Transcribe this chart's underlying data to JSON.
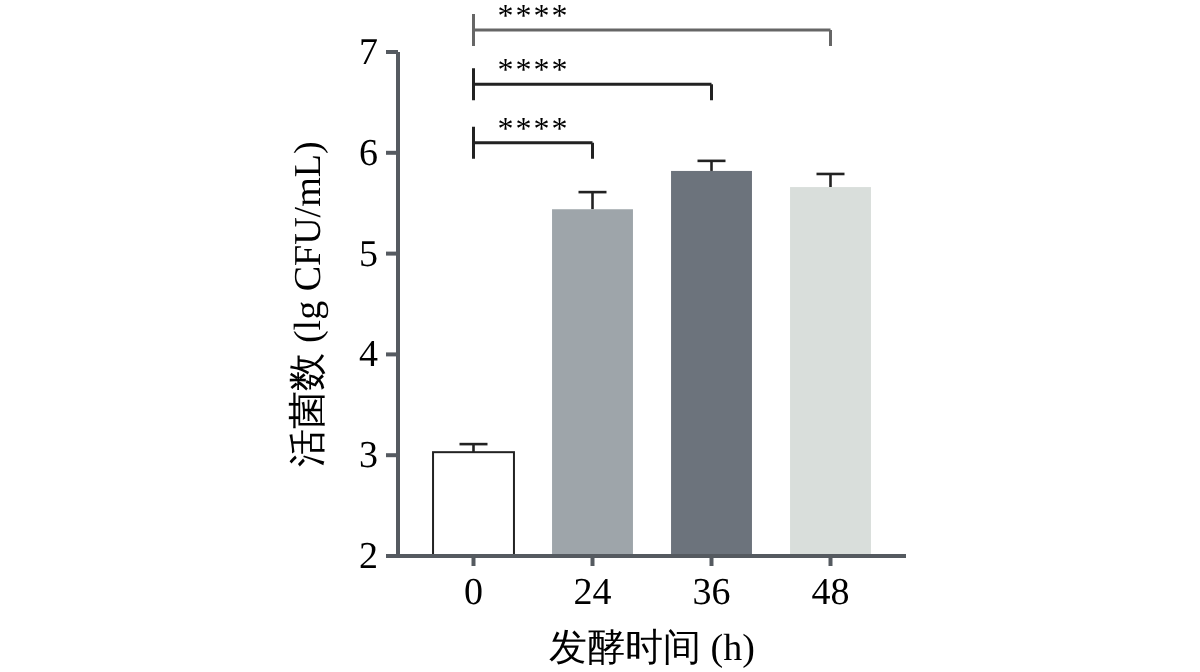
{
  "chart_data": {
    "type": "bar",
    "xlabel": "发酵时间 (h)",
    "ylabel": "活菌数 (lg CFU/mL)",
    "categories": [
      "0",
      "24",
      "36",
      "48"
    ],
    "values": [
      3.03,
      5.44,
      5.82,
      5.66
    ],
    "errors": [
      0.08,
      0.17,
      0.1,
      0.13
    ],
    "colors": [
      "#ffffff",
      "#9ea5aa",
      "#6c737c",
      "#d9dedb"
    ],
    "ylim": [
      2,
      7
    ],
    "yticks": [
      2,
      3,
      4,
      5,
      6,
      7
    ],
    "annotations": [
      "****",
      "****",
      "****"
    ]
  }
}
